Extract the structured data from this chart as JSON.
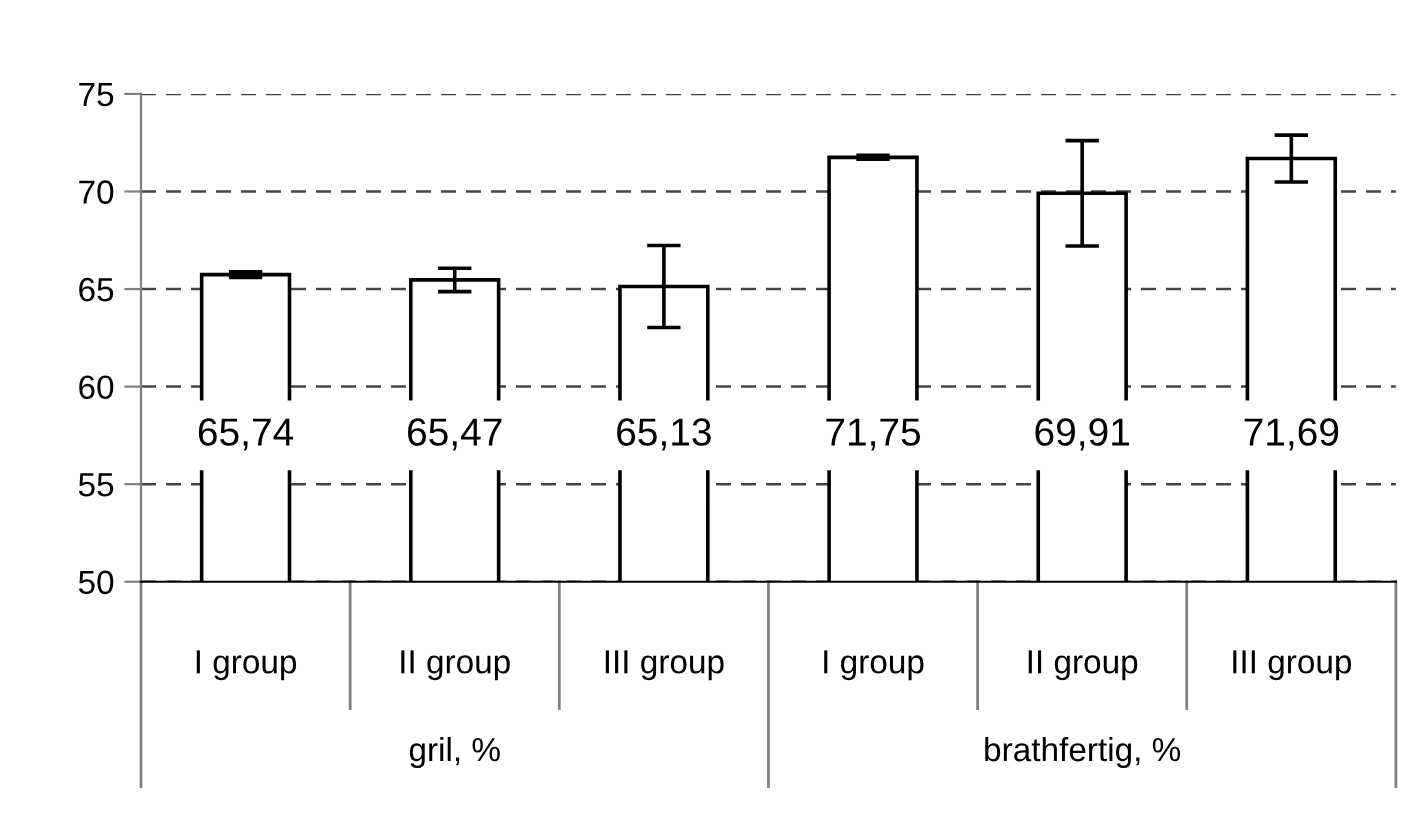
{
  "chart_data": {
    "type": "bar",
    "categories": [
      "I group",
      "II group",
      "III group",
      "I group",
      "II group",
      "III group"
    ],
    "values": [
      65.74,
      65.47,
      65.13,
      71.75,
      69.91,
      71.69
    ],
    "errors": [
      0.15,
      0.6,
      2.1,
      0.1,
      2.7,
      1.2
    ],
    "value_labels": [
      "65,74",
      "65,47",
      "65,13",
      "71,75",
      "69,91",
      "71,69"
    ],
    "color": "#ffffff",
    "ylim": [
      50,
      75
    ],
    "yticks": [
      50,
      55,
      60,
      65,
      70,
      75
    ],
    "grid": "y",
    "line_style": "dashed",
    "annotations": [
      "gril, %",
      "brathfertig, %"
    ]
  }
}
